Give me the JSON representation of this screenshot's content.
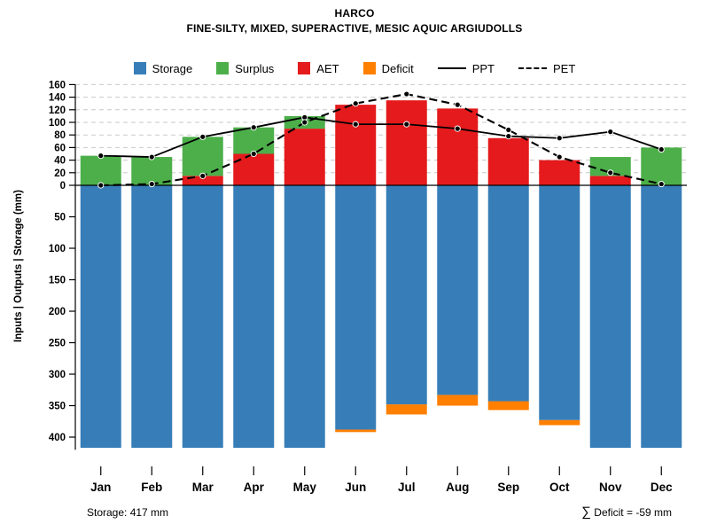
{
  "title": "HARCO",
  "subtitle": "FINE-SILTY, MIXED, SUPERACTIVE, MESIC AQUIC ARGIUDOLLS",
  "colors": {
    "storage": "#377EB8",
    "surplus": "#4DAF4A",
    "aet": "#E41A1C",
    "deficit": "#FF7F00",
    "line": "#000000",
    "grid": "#C8C8C8"
  },
  "legend": [
    {
      "label": "Storage",
      "kind": "box",
      "color": "#377EB8"
    },
    {
      "label": "Surplus",
      "kind": "box",
      "color": "#4DAF4A"
    },
    {
      "label": "AET",
      "kind": "box",
      "color": "#E41A1C"
    },
    {
      "label": "Deficit",
      "kind": "box",
      "color": "#FF7F00"
    },
    {
      "label": "PPT",
      "kind": "line",
      "style": "solid"
    },
    {
      "label": "PET",
      "kind": "line",
      "style": "dashed"
    }
  ],
  "chart_data": {
    "type": "bar",
    "categories": [
      "Jan",
      "Feb",
      "Mar",
      "Apr",
      "May",
      "Jun",
      "Jul",
      "Aug",
      "Sep",
      "Oct",
      "Nov",
      "Dec"
    ],
    "ylabel": "Inputs | Outputs | Storage  (mm)",
    "axis_up": {
      "min": 0,
      "max": 160,
      "tick": 20,
      "grid": "dashed"
    },
    "axis_down": {
      "min": 0,
      "max": 400,
      "tick": 50,
      "grid": "none"
    },
    "legend_position": "top",
    "series": [
      {
        "name": "Storage",
        "type": "bar",
        "direction": "down",
        "color": "#377EB8",
        "values": [
          417,
          417,
          417,
          417,
          417,
          388,
          348,
          333,
          343,
          373,
          417,
          417
        ]
      },
      {
        "name": "Deficit",
        "type": "bar",
        "direction": "down",
        "color": "#FF7F00",
        "values": [
          0,
          0,
          0,
          0,
          0,
          4,
          16,
          17,
          14,
          8,
          0,
          0
        ]
      },
      {
        "name": "AET",
        "type": "bar",
        "direction": "up",
        "color": "#E41A1C",
        "values": [
          0,
          0,
          15,
          50,
          90,
          128,
          135,
          122,
          75,
          40,
          15,
          0
        ]
      },
      {
        "name": "Surplus",
        "type": "bar",
        "direction": "up",
        "color": "#4DAF4A",
        "values": [
          47,
          45,
          62,
          42,
          20,
          0,
          0,
          0,
          0,
          0,
          30,
          60
        ]
      },
      {
        "name": "PPT",
        "type": "line",
        "style": "solid",
        "color": "#000000",
        "values": [
          47,
          45,
          77,
          92,
          108,
          97,
          97,
          90,
          78,
          75,
          85,
          57
        ]
      },
      {
        "name": "PET",
        "type": "line",
        "style": "dashed",
        "color": "#000000",
        "values": [
          0,
          2,
          15,
          50,
          100,
          130,
          145,
          128,
          88,
          45,
          20,
          2
        ]
      }
    ]
  },
  "footer": {
    "storage_label": "Storage: 417 mm",
    "deficit_sum_symbol": "∑",
    "deficit_label": " Deficit = -59 mm"
  }
}
